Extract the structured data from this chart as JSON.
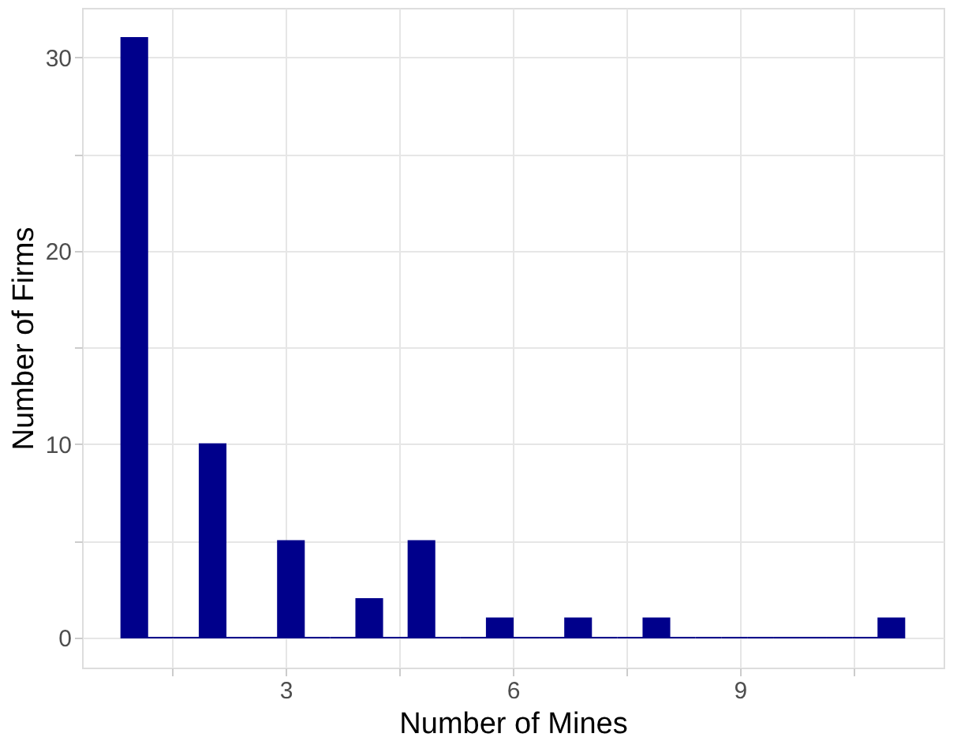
{
  "chart_data": {
    "type": "histogram",
    "xlabel": "Number of Mines",
    "ylabel": "Number of Firms",
    "bins": [
      0.8276,
      1.1724,
      1.5172,
      1.8621,
      2.2069,
      2.5517,
      2.8966,
      3.2414,
      3.5862,
      3.931,
      4.2759,
      4.6207,
      4.9655,
      5.3103,
      5.6552,
      6.0,
      6.3448,
      6.6897,
      7.0345,
      7.3793,
      7.7241,
      8.069,
      8.4138,
      8.7586,
      9.1034,
      9.4483,
      9.7931,
      10.1379,
      10.4828,
      10.8276,
      11.1724
    ],
    "values": [
      31,
      0,
      0,
      10,
      0,
      0,
      5,
      0,
      0,
      2,
      0,
      5,
      0,
      0,
      1,
      0,
      0,
      1,
      0,
      0,
      1,
      0,
      0,
      0,
      0,
      0,
      0,
      0,
      0,
      1
    ],
    "color": "#00008b",
    "xlim": [
      0.31,
      11.69
    ],
    "xticks": [
      {
        "value": 1.5,
        "label": null
      },
      3,
      {
        "value": 4.5,
        "label": null
      },
      6,
      {
        "value": 7.5,
        "label": null
      },
      9,
      {
        "value": 10.5,
        "label": null
      }
    ],
    "ylim": [
      -1.55,
      32.55
    ],
    "yticks": [
      0,
      {
        "value": 5,
        "label": null
      },
      10,
      {
        "value": 15,
        "label": null
      },
      20,
      {
        "value": 25,
        "label": null
      },
      30
    ],
    "grid": true
  }
}
